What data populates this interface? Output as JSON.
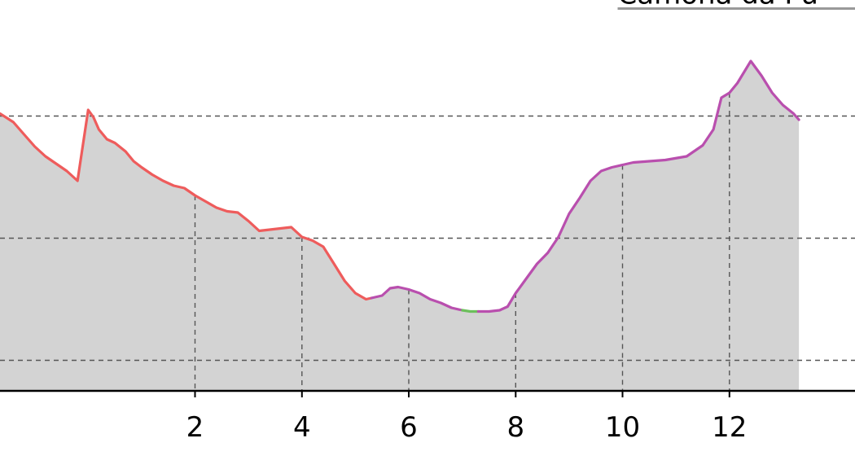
{
  "chart_data": {
    "type": "area",
    "title": "",
    "xlabel": "",
    "ylabel": "",
    "xlim": [
      -1.65,
      14.35
    ],
    "ylim": [
      0,
      3.2
    ],
    "x_ticks": [
      2,
      4,
      6,
      8,
      10,
      12
    ],
    "x_tick_labels": [
      "2",
      "4",
      "6",
      "8",
      "10",
      "12"
    ],
    "y_gridlines": [
      0.25,
      1.25,
      2.25,
      3.25
    ],
    "grid": true,
    "fill_color": "#d3d3d3",
    "axis_color": "#000000",
    "series": [
      {
        "color": "#ee5c5c",
        "points": [
          [
            -1.65,
            2.27
          ],
          [
            -1.4,
            2.2
          ],
          [
            -1.2,
            2.1
          ],
          [
            -1.0,
            2.0
          ],
          [
            -0.8,
            1.92
          ],
          [
            -0.6,
            1.86
          ],
          [
            -0.4,
            1.8
          ],
          [
            -0.2,
            1.72
          ],
          [
            0.0,
            2.3
          ],
          [
            0.1,
            2.24
          ],
          [
            0.2,
            2.14
          ],
          [
            0.35,
            2.06
          ],
          [
            0.5,
            2.03
          ],
          [
            0.7,
            1.96
          ],
          [
            0.85,
            1.88
          ],
          [
            1.0,
            1.83
          ],
          [
            1.2,
            1.77
          ],
          [
            1.4,
            1.72
          ],
          [
            1.6,
            1.68
          ],
          [
            1.8,
            1.66
          ],
          [
            2.0,
            1.6
          ],
          [
            2.2,
            1.55
          ],
          [
            2.4,
            1.5
          ],
          [
            2.6,
            1.47
          ],
          [
            2.8,
            1.46
          ],
          [
            3.0,
            1.39
          ],
          [
            3.2,
            1.31
          ],
          [
            3.4,
            1.32
          ],
          [
            3.6,
            1.33
          ],
          [
            3.8,
            1.34
          ],
          [
            4.0,
            1.26
          ],
          [
            4.2,
            1.23
          ],
          [
            4.4,
            1.18
          ],
          [
            4.6,
            1.04
          ],
          [
            4.8,
            0.9
          ],
          [
            5.0,
            0.8
          ],
          [
            5.2,
            0.75
          ],
          [
            5.3,
            0.76
          ]
        ]
      },
      {
        "color": "#b94fae",
        "points": [
          [
            5.3,
            0.76
          ],
          [
            5.5,
            0.78
          ],
          [
            5.65,
            0.84
          ],
          [
            5.8,
            0.85
          ],
          [
            6.0,
            0.83
          ],
          [
            6.2,
            0.8
          ],
          [
            6.4,
            0.75
          ],
          [
            6.6,
            0.72
          ],
          [
            6.8,
            0.68
          ],
          [
            7.0,
            0.66
          ]
        ]
      },
      {
        "color": "#6cbf5c",
        "points": [
          [
            7.0,
            0.66
          ],
          [
            7.15,
            0.65
          ],
          [
            7.3,
            0.65
          ]
        ]
      },
      {
        "color": "#b94fae",
        "points": [
          [
            7.3,
            0.65
          ],
          [
            7.5,
            0.65
          ],
          [
            7.7,
            0.66
          ],
          [
            7.85,
            0.69
          ],
          [
            8.0,
            0.8
          ],
          [
            8.2,
            0.92
          ],
          [
            8.4,
            1.04
          ],
          [
            8.6,
            1.13
          ],
          [
            8.8,
            1.26
          ],
          [
            9.0,
            1.45
          ],
          [
            9.2,
            1.58
          ],
          [
            9.4,
            1.72
          ],
          [
            9.6,
            1.8
          ],
          [
            9.8,
            1.83
          ],
          [
            10.0,
            1.85
          ],
          [
            10.2,
            1.87
          ],
          [
            10.5,
            1.88
          ],
          [
            10.8,
            1.89
          ],
          [
            11.2,
            1.92
          ],
          [
            11.5,
            2.01
          ],
          [
            11.7,
            2.14
          ],
          [
            11.85,
            2.4
          ],
          [
            12.0,
            2.44
          ],
          [
            12.15,
            2.52
          ],
          [
            12.4,
            2.7
          ],
          [
            12.6,
            2.58
          ],
          [
            12.8,
            2.44
          ],
          [
            13.0,
            2.34
          ],
          [
            13.2,
            2.27
          ],
          [
            13.3,
            2.22
          ]
        ]
      }
    ],
    "annotations": [
      {
        "text": "Camona da Pu",
        "x": 10.0,
        "y": 3.25,
        "underline_color": "#999999"
      }
    ]
  }
}
